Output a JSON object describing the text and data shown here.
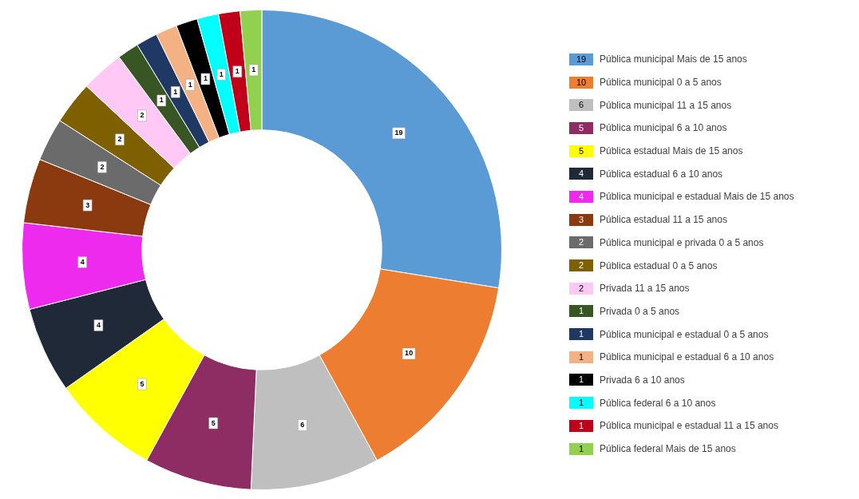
{
  "chart_data": {
    "type": "donut",
    "legend": "right",
    "data_labels": true,
    "categories": [
      "Pública municipal Mais de 15 anos",
      "Pública municipal 0 a 5 anos",
      "Pública municipal 11 a 15 anos",
      "Pública municipal 6 a 10 anos",
      "Pública estadual Mais de 15 anos",
      "Pública estadual 6 a 10 anos",
      "Pública municipal e estadual Mais de 15 anos",
      "Pública estadual 11 a 15 anos",
      "Pública municipal e privada 0 a 5 anos",
      "Pública estadual 0 a 5 anos",
      "Privada 11 a 15 anos",
      "Privada 0 a 5 anos",
      "Pública municipal e estadual 0 a 5 anos",
      "Pública municipal e estadual 6 a 10 anos",
      "Privada 6 a 10 anos",
      "Pública federal 6 a 10 anos",
      "Pública municipal e estadual 11 a 15 anos",
      "Pública federal Mais de 15 anos"
    ],
    "values": [
      19,
      10,
      6,
      5,
      5,
      4,
      4,
      3,
      2,
      2,
      2,
      1,
      1,
      1,
      1,
      1,
      1,
      1
    ],
    "annotations": [
      "19",
      "10",
      "6",
      "5",
      "5",
      "4",
      "4",
      "3",
      "2",
      "2",
      "2",
      "1",
      "1",
      "1",
      "1",
      "1",
      "1",
      "1"
    ],
    "colors": [
      "#5b9bd5",
      "#ed7d31",
      "#bfbfbf",
      "#8e2d64",
      "#ffff00",
      "#1f2937",
      "#ee2aee",
      "#8b3a0f",
      "#6b6b6b",
      "#7f6000",
      "#ffc8f5",
      "#375623",
      "#1f3864",
      "#f4b183",
      "#000000",
      "#00ffff",
      "#c00018",
      "#92d050"
    ]
  }
}
